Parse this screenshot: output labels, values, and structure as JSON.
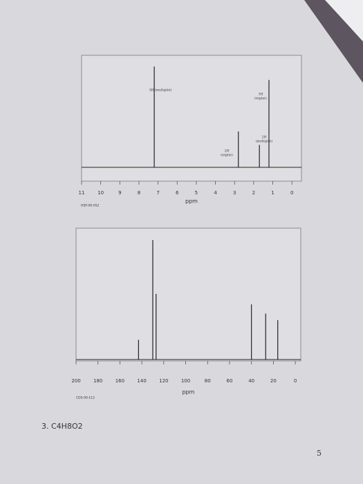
{
  "chart_data": [
    {
      "type": "spectrum",
      "x_label": "ppm",
      "sample_code": "HSP-00-052",
      "xlim": [
        11,
        -0.5
      ],
      "xticks": [
        11,
        10,
        9,
        8,
        7,
        6,
        5,
        4,
        3,
        2,
        1,
        0
      ],
      "ylim": [
        0,
        100
      ],
      "x": [
        7.2,
        2.8,
        1.7,
        1.2
      ],
      "values": [
        90,
        32,
        20,
        78
      ],
      "annotations": [
        [
          "5H (multiplet)"
        ],
        [
          "2H",
          "(triplet)"
        ],
        [
          "2H",
          "(multiplet)"
        ],
        [
          "3H",
          "(triplet)"
        ]
      ],
      "color": "#222222"
    },
    {
      "type": "spectrum",
      "x_label": "ppm",
      "sample_code": "CDS-00-112",
      "xlim": [
        200,
        -5
      ],
      "xticks": [
        200,
        180,
        160,
        140,
        120,
        100,
        80,
        60,
        40,
        20,
        0
      ],
      "ylim": [
        0,
        100
      ],
      "x": [
        143,
        130,
        127,
        40,
        27,
        16
      ],
      "values": [
        15,
        91,
        50,
        42,
        35,
        30
      ],
      "color": "#222222"
    }
  ],
  "document": {
    "problem": "3. C4H8O2",
    "page_number": "5"
  }
}
